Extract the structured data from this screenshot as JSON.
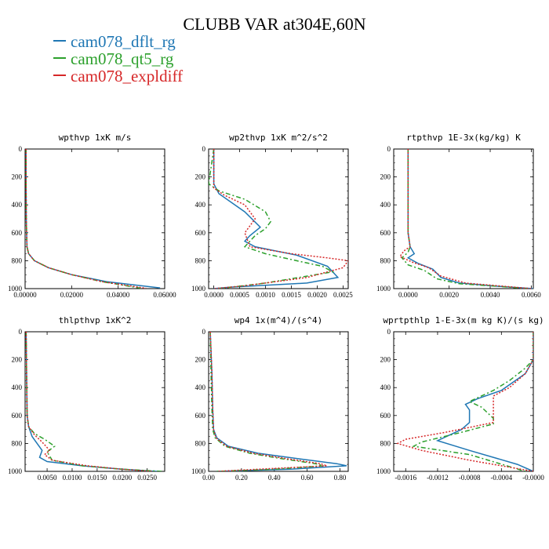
{
  "figure": {
    "title": "CLUBB VAR at304E,60N"
  },
  "legend": [
    {
      "label": "cam078_dflt_rg",
      "color": "#1f77b4"
    },
    {
      "label": "cam078_qt5_rg",
      "color": "#2ca02c"
    },
    {
      "label": "cam078_expldiff",
      "color": "#d62728"
    }
  ],
  "chart_data": [
    {
      "type": "line",
      "title": "wpthvp  1xK m/s",
      "xlim": [
        0,
        0.06
      ],
      "ylim": [
        1000,
        0
      ],
      "xticks": [
        "0.00000",
        "0.02000",
        "0.04000",
        "0.06000"
      ],
      "yticks": [
        "0",
        "200",
        "400",
        "600",
        "800",
        "1000"
      ],
      "series": [
        {
          "name": "cam078_dflt_rg",
          "color": "#1f77b4",
          "dash": "",
          "x": [
            0.0004,
            0.0004,
            0.0005,
            0.0008,
            0.0015,
            0.004,
            0.01,
            0.02,
            0.035,
            0.058
          ],
          "y": [
            0,
            200,
            500,
            700,
            750,
            800,
            850,
            900,
            950,
            995
          ]
        },
        {
          "name": "cam078_qt5_rg",
          "color": "#2ca02c",
          "dash": "6,3,2,3",
          "x": [
            0.0004,
            0.0004,
            0.0005,
            0.0008,
            0.0015,
            0.004,
            0.01,
            0.02,
            0.033,
            0.05
          ],
          "y": [
            0,
            200,
            500,
            700,
            750,
            800,
            850,
            900,
            950,
            998
          ]
        },
        {
          "name": "cam078_expldiff",
          "color": "#d62728",
          "dash": "2,2",
          "x": [
            0.0004,
            0.0004,
            0.0005,
            0.0008,
            0.0015,
            0.004,
            0.01,
            0.02,
            0.033,
            0.052
          ],
          "y": [
            0,
            200,
            500,
            700,
            750,
            800,
            850,
            900,
            950,
            998
          ]
        }
      ]
    },
    {
      "type": "line",
      "title": "wp2thvp  1xK m^2/s^2",
      "xlim": [
        -0.0001,
        0.0026
      ],
      "ylim": [
        1000,
        0
      ],
      "xticks": [
        "0.0000",
        "0.0005",
        "0.0010",
        "0.0015",
        "0.0020",
        "0.0025"
      ],
      "yticks": [
        "0",
        "200",
        "400",
        "600",
        "800",
        "1000"
      ],
      "series": [
        {
          "name": "cam078_dflt_rg",
          "color": "#1f77b4",
          "dash": "",
          "x": [
            0.0,
            0.0,
            0.0001,
            0.0006,
            0.0009,
            0.0007,
            0.0006,
            0.0008,
            0.0016,
            0.0022,
            0.0024,
            0.0018,
            0.0003,
            0.0
          ],
          "y": [
            0,
            250,
            320,
            450,
            560,
            620,
            660,
            700,
            760,
            840,
            920,
            960,
            990,
            1000
          ]
        },
        {
          "name": "cam078_qt5_rg",
          "color": "#2ca02c",
          "dash": "6,3,2,3",
          "x": [
            0.0,
            -0.0001,
            0.0001,
            0.0006,
            0.001,
            0.0011,
            0.001,
            0.0008,
            0.0006,
            0.001,
            0.0016,
            0.0021,
            0.0023,
            0.001,
            0.0001
          ],
          "y": [
            0,
            250,
            300,
            360,
            450,
            520,
            570,
            620,
            700,
            750,
            800,
            840,
            880,
            960,
            1000
          ]
        },
        {
          "name": "cam078_expldiff",
          "color": "#d62728",
          "dash": "2,2",
          "x": [
            0.0,
            0.0,
            0.0002,
            0.0006,
            0.0008,
            0.0006,
            0.0007,
            0.0015,
            0.0022,
            0.0026,
            0.0025,
            0.0018,
            0.0006,
            0.0
          ],
          "y": [
            0,
            280,
            330,
            400,
            500,
            600,
            700,
            750,
            780,
            800,
            850,
            920,
            980,
            1000
          ]
        }
      ]
    },
    {
      "type": "line",
      "title": "rtpthvp  1E-3x(kg/kg) K",
      "xlim": [
        -0.0007,
        0.0061
      ],
      "ylim": [
        1000,
        0
      ],
      "xticks": [
        "0.0000",
        "0.0020",
        "0.0040",
        "0.0060"
      ],
      "yticks": [
        "0",
        "200",
        "400",
        "600",
        "800",
        "1000"
      ],
      "series": [
        {
          "name": "cam078_dflt_rg",
          "color": "#1f77b4",
          "dash": "",
          "x": [
            0.0,
            0.0,
            0.0,
            0.0001,
            0.0003,
            0.0,
            0.0005,
            0.0012,
            0.0016,
            0.0025,
            0.0045,
            0.0061
          ],
          "y": [
            0,
            300,
            600,
            700,
            750,
            780,
            820,
            860,
            920,
            960,
            985,
            1000
          ]
        },
        {
          "name": "cam078_qt5_rg",
          "color": "#2ca02c",
          "dash": "6,3,2,3",
          "x": [
            0.0,
            0.0,
            0.0,
            0.0001,
            0.0,
            -0.0003,
            0.0,
            0.0008,
            0.0014,
            0.0025,
            0.0045,
            0.0058
          ],
          "y": [
            0,
            300,
            600,
            700,
            740,
            780,
            830,
            870,
            930,
            965,
            985,
            1000
          ]
        },
        {
          "name": "cam078_expldiff",
          "color": "#d62728",
          "dash": "2,2",
          "x": [
            0.0,
            0.0,
            0.0,
            0.0001,
            -0.0002,
            -0.0004,
            0.0002,
            0.001,
            0.0016,
            0.0028,
            0.0048,
            0.006
          ],
          "y": [
            0,
            300,
            600,
            700,
            730,
            770,
            810,
            850,
            910,
            960,
            985,
            1000
          ]
        }
      ]
    },
    {
      "type": "line",
      "title": "thlpthvp  1xK^2",
      "xlim": [
        0.0006,
        0.0285
      ],
      "ylim": [
        1000,
        0
      ],
      "xticks": [
        "0.0050",
        "0.0100",
        "0.0150",
        "0.0200",
        "0.0250"
      ],
      "yticks": [
        "0",
        "200",
        "400",
        "600",
        "800",
        "1000"
      ],
      "series": [
        {
          "name": "cam078_dflt_rg",
          "color": "#1f77b4",
          "dash": "",
          "x": [
            0.0008,
            0.0009,
            0.001,
            0.0013,
            0.002,
            0.003,
            0.004,
            0.0035,
            0.005,
            0.012,
            0.02,
            0.027
          ],
          "y": [
            0,
            300,
            600,
            680,
            750,
            800,
            850,
            900,
            930,
            960,
            985,
            1000
          ]
        },
        {
          "name": "cam078_qt5_rg",
          "color": "#2ca02c",
          "dash": "6,3,2,3",
          "x": [
            0.0008,
            0.0009,
            0.001,
            0.0013,
            0.0025,
            0.0045,
            0.0065,
            0.005,
            0.006,
            0.012,
            0.02,
            0.028
          ],
          "y": [
            0,
            300,
            600,
            680,
            730,
            770,
            820,
            860,
            920,
            960,
            985,
            1000
          ]
        },
        {
          "name": "cam078_expldiff",
          "color": "#d62728",
          "dash": "2,2",
          "x": [
            0.0008,
            0.0009,
            0.001,
            0.0013,
            0.0025,
            0.004,
            0.0055,
            0.0045,
            0.006,
            0.013,
            0.02,
            0.026
          ],
          "y": [
            0,
            300,
            600,
            680,
            740,
            790,
            850,
            880,
            920,
            960,
            985,
            1000
          ]
        }
      ]
    },
    {
      "type": "line",
      "title": "wp4  1x(m^4)/(s^4)",
      "xlim": [
        0,
        0.85
      ],
      "ylim": [
        1000,
        0
      ],
      "xticks": [
        "0.00",
        "0.20",
        "0.40",
        "0.60",
        "0.80"
      ],
      "yticks": [
        "0",
        "200",
        "400",
        "600",
        "800",
        "1000"
      ],
      "series": [
        {
          "name": "cam078_dflt_rg",
          "color": "#1f77b4",
          "dash": "",
          "x": [
            0.01,
            0.02,
            0.025,
            0.03,
            0.05,
            0.12,
            0.3,
            0.55,
            0.78,
            0.84,
            0.5,
            0.05
          ],
          "y": [
            0,
            300,
            550,
            700,
            760,
            820,
            870,
            910,
            945,
            960,
            985,
            1000
          ]
        },
        {
          "name": "cam078_qt5_rg",
          "color": "#2ca02c",
          "dash": "6,3,2,3",
          "x": [
            0.01,
            0.015,
            0.02,
            0.025,
            0.04,
            0.1,
            0.25,
            0.45,
            0.65,
            0.7,
            0.4,
            0.05
          ],
          "y": [
            0,
            300,
            550,
            700,
            760,
            820,
            870,
            910,
            945,
            960,
            985,
            1000
          ]
        },
        {
          "name": "cam078_expldiff",
          "color": "#d62728",
          "dash": "2,2",
          "x": [
            0.01,
            0.02,
            0.025,
            0.03,
            0.045,
            0.11,
            0.27,
            0.48,
            0.68,
            0.72,
            0.3,
            0.05
          ],
          "y": [
            0,
            300,
            550,
            700,
            760,
            820,
            870,
            910,
            945,
            960,
            985,
            1000
          ]
        }
      ]
    },
    {
      "type": "line",
      "title": "wprtpthlp  1-E-3x(m kg K)/(s kg)",
      "xlim": [
        -0.00175,
        0.0
      ],
      "ylim": [
        1000,
        0
      ],
      "xticks": [
        "-0.0016",
        "-0.0012",
        "-0.0008",
        "-0.0004",
        "-0.0000"
      ],
      "yticks": [
        "0",
        "200",
        "400",
        "600",
        "800",
        "1000"
      ],
      "series": [
        {
          "name": "cam078_dflt_rg",
          "color": "#1f77b4",
          "dash": "",
          "x": [
            0.0,
            0.0,
            -0.0001,
            -0.0004,
            -0.0007,
            -0.00085,
            -0.0008,
            -0.0008,
            -0.0009,
            -0.0012,
            -0.0008,
            -0.0002,
            0.0
          ],
          "y": [
            0,
            200,
            300,
            420,
            480,
            520,
            560,
            650,
            700,
            780,
            850,
            950,
            1000
          ]
        },
        {
          "name": "cam078_qt5_rg",
          "color": "#2ca02c",
          "dash": "6,3,2,3",
          "x": [
            0.0,
            0.0,
            -0.0001,
            -0.0003,
            -0.0005,
            -0.0008,
            -0.00065,
            -0.0005,
            -0.0005,
            -0.0009,
            -0.0014,
            -0.0015,
            -0.0008,
            -0.0001
          ],
          "y": [
            0,
            200,
            260,
            350,
            420,
            500,
            540,
            620,
            660,
            720,
            790,
            820,
            880,
            1000
          ]
        },
        {
          "name": "cam078_expldiff",
          "color": "#d62728",
          "dash": "2,2",
          "x": [
            0.0,
            0.0,
            -0.0001,
            -0.0003,
            -0.0005,
            -0.0005,
            -0.0005,
            -0.0011,
            -0.0016,
            -0.0017,
            -0.0014,
            -0.0008,
            0.0
          ],
          "y": [
            0,
            200,
            300,
            400,
            460,
            540,
            650,
            720,
            770,
            800,
            850,
            920,
            1000
          ]
        }
      ]
    }
  ]
}
